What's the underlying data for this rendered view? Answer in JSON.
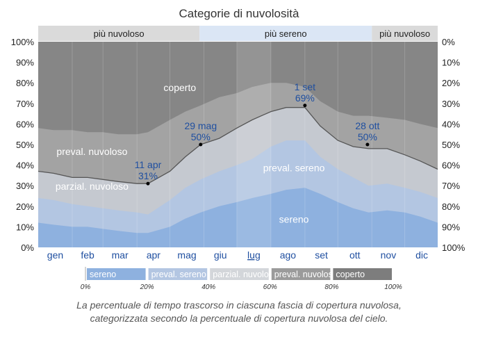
{
  "chart_data": {
    "type": "area",
    "title": "Categorie di nuvolosità",
    "months": [
      "gen",
      "feb",
      "mar",
      "apr",
      "mag",
      "giu",
      "lug",
      "ago",
      "set",
      "ott",
      "nov",
      "dic"
    ],
    "highlighted_month": "lug",
    "y_left_ticks": [
      "0%",
      "10%",
      "20%",
      "30%",
      "40%",
      "50%",
      "60%",
      "70%",
      "80%",
      "90%",
      "100%"
    ],
    "y_right_ticks": [
      "100%",
      "90%",
      "80%",
      "70%",
      "60%",
      "50%",
      "40%",
      "30%",
      "20%",
      "10%",
      "0%"
    ],
    "ylim": [
      0,
      100
    ],
    "season_bar": [
      {
        "label": "più nuvoloso",
        "from_day": 1,
        "to_day": 148,
        "color": "#dadada"
      },
      {
        "label": "più sereno",
        "from_day": 148,
        "to_day": 305,
        "color": "#dbe6f5"
      },
      {
        "label": "più nuvoloso",
        "from_day": 305,
        "to_day": 365,
        "color": "#dadada"
      }
    ],
    "x_days": [
      1,
      15,
      32,
      46,
      60,
      74,
      91,
      101,
      121,
      135,
      149,
      166,
      182,
      196,
      213,
      227,
      244,
      258,
      274,
      288,
      302,
      319,
      335,
      349,
      365
    ],
    "series": [
      {
        "name": "sereno",
        "values": [
          12,
          11,
          10,
          10,
          9,
          8,
          7,
          7,
          10,
          14,
          17,
          20,
          22,
          24,
          26,
          28,
          29,
          26,
          22,
          19,
          17,
          18,
          17,
          15,
          12
        ]
      },
      {
        "name": "preval. sereno",
        "values": [
          24,
          23,
          21,
          20,
          19,
          18,
          17,
          16,
          23,
          29,
          33,
          37,
          40,
          43,
          49,
          52,
          52,
          44,
          38,
          34,
          30,
          31,
          29,
          27,
          24
        ]
      },
      {
        "name": "parzial. nuvoloso",
        "values": [
          37,
          36,
          34,
          34,
          33,
          32,
          31,
          31,
          37,
          44,
          50,
          53,
          58,
          62,
          66,
          68,
          68,
          59,
          52,
          49,
          48,
          48,
          45,
          42,
          38
        ]
      },
      {
        "name": "preval. nuvoloso",
        "values": [
          58,
          57,
          57,
          56,
          56,
          55,
          55,
          56,
          62,
          66,
          69,
          73,
          75,
          78,
          80,
          80,
          78,
          71,
          66,
          64,
          64,
          63,
          62,
          60,
          58
        ]
      }
    ],
    "band_labels": [
      {
        "text": "coperto",
        "day": 130,
        "value": 76
      },
      {
        "text": "preval. nuvoloso",
        "day": 50,
        "value": 45
      },
      {
        "text": "parzial. nuvoloso",
        "day": 50,
        "value": 28
      },
      {
        "text": "preval. sereno",
        "day": 234,
        "value": 37
      },
      {
        "text": "sereno",
        "day": 234,
        "value": 12
      }
    ],
    "annotations": [
      {
        "date": "11 apr",
        "value_label": "31%",
        "day": 101,
        "value": 31
      },
      {
        "date": "29 mag",
        "value_label": "50%",
        "day": 149,
        "value": 50
      },
      {
        "date": "1 set",
        "value_label": "69%",
        "day": 244,
        "value": 69
      },
      {
        "date": "28 ott",
        "value_label": "50%",
        "day": 301,
        "value": 50
      }
    ],
    "colors": {
      "coperto": "#868686",
      "preval_nuvoloso": "#a3a3a3",
      "parzial_nuvoloso": "#c5c9d0",
      "preval_sereno": "#b3c6e2",
      "sereno": "#8eb1df",
      "line": "#555555",
      "annotation": "#1f4fa0",
      "month_label": "#1f4fa0"
    },
    "legend": {
      "items": [
        {
          "label": "sereno",
          "color": "#8eb1df"
        },
        {
          "label": "preval. sereno",
          "color": "#b3c6e2"
        },
        {
          "label": "parzial. nuvoloso",
          "color": "#d3d6da"
        },
        {
          "label": "preval. nuvoloso",
          "color": "#9b9b9b"
        },
        {
          "label": "coperto",
          "color": "#7d7d7d"
        }
      ],
      "scale_ticks": [
        "0%",
        "20%",
        "40%",
        "60%",
        "80%",
        "100%"
      ]
    }
  },
  "caption": {
    "line1": "La percentuale di tempo trascorso in ciascuna fascia di copertura nuvolosa,",
    "line2": "categorizzata secondo la percentuale di copertura nuvolosa del cielo."
  }
}
